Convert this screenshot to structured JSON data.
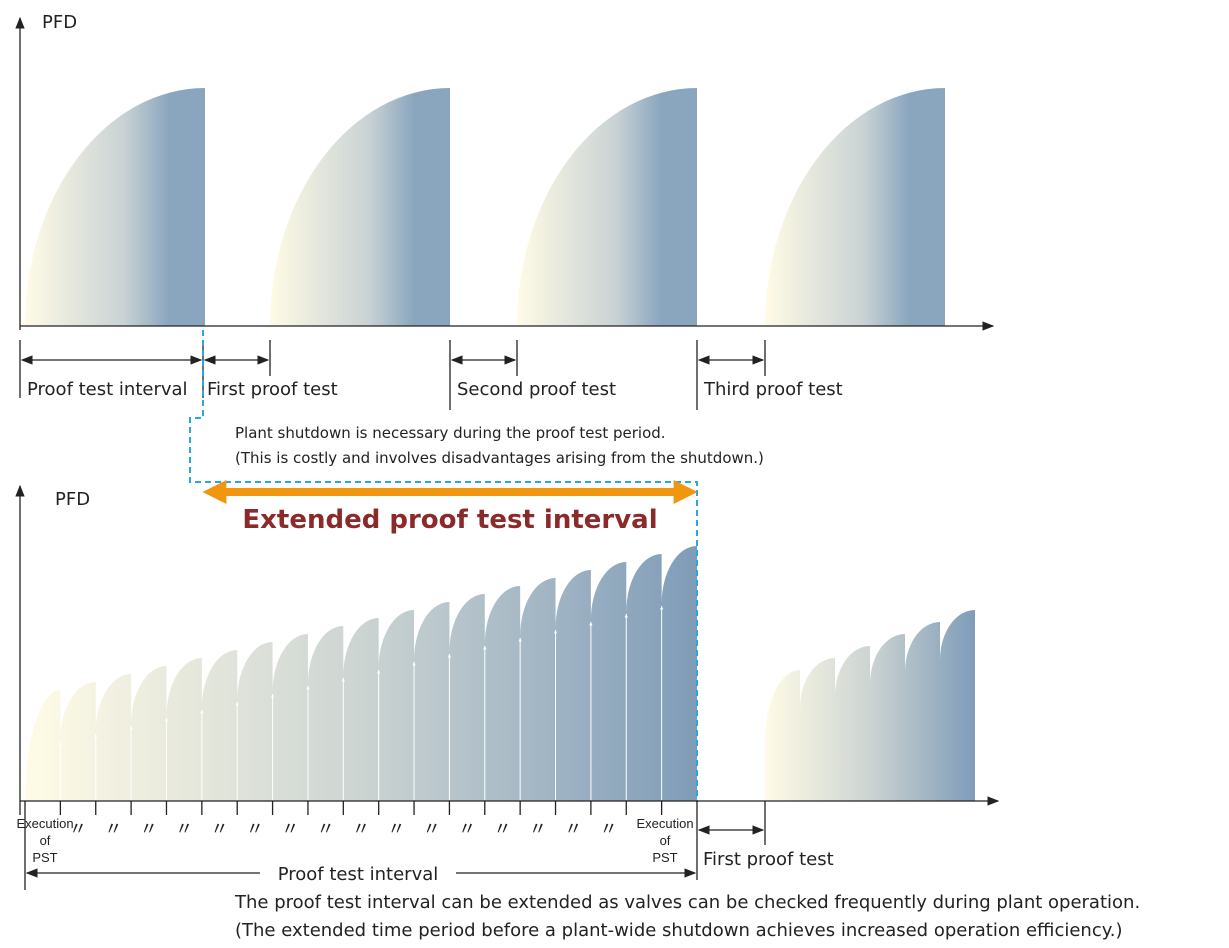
{
  "top": {
    "y_label": "PFD",
    "labels": [
      "Proof test interval",
      "First proof test",
      "Second proof test",
      "Third proof test"
    ],
    "note": [
      "Plant shutdown is necessary during the proof test period.",
      "(This is costly and involves disadvantages arising from the shutdown.)"
    ]
  },
  "bottom": {
    "y_label": "PFD",
    "extended": "Extended proof test interval",
    "pst_labels": [
      [
        "Execution",
        "of",
        "PST"
      ],
      [
        "Execution",
        "of",
        "PST"
      ]
    ],
    "ditto_marks": [
      "〃",
      "〃",
      "〃",
      "〃",
      "〃",
      "〃",
      "〃",
      "〃",
      "〃",
      "〃",
      "〃",
      "〃",
      "〃",
      "〃",
      "〃",
      "〃"
    ],
    "interval": "Proof test interval",
    "first_test": "First proof test",
    "note": [
      "The proof test interval can be extended as valves can be checked frequently during plant operation.",
      "(The extended time period before a plant-wide shutdown achieves increased operation efficiency.)"
    ]
  }
}
